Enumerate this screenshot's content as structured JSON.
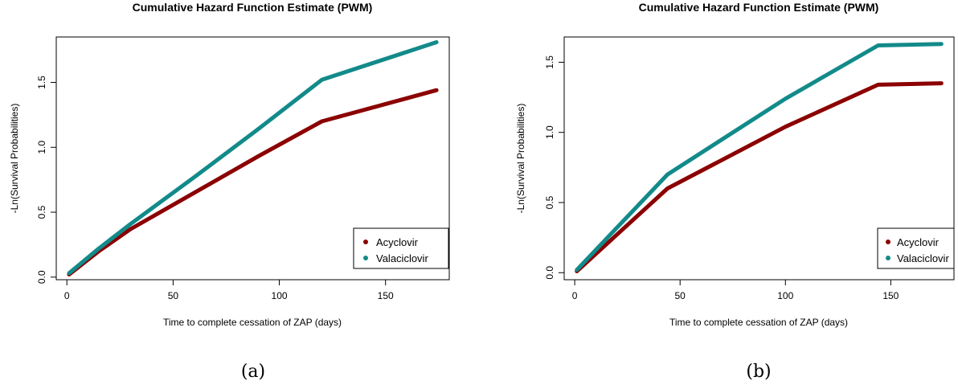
{
  "chart_data": [
    {
      "type": "line",
      "title": "Cumulative Hazard Function Estimate (PWM)",
      "xlabel": "Time to complete cessation of ZAP (days)",
      "ylabel": "-Ln(Survival Probabilities)",
      "caption": "(a)",
      "xlim": [
        -5,
        180
      ],
      "ylim": [
        -0.02,
        1.85
      ],
      "xticks": [
        0,
        50,
        100,
        150
      ],
      "yticks": [
        0.0,
        0.5,
        1.0,
        1.5
      ],
      "xtick_labels": [
        "0",
        "50",
        "100",
        "150"
      ],
      "ytick_labels": [
        "0.0",
        "0.5",
        "1.0",
        "1.5"
      ],
      "grid": false,
      "legend": "bottom-right",
      "series": [
        {
          "name": "Acyclovir",
          "color": "#8B0000",
          "x": [
            1,
            15,
            30,
            60,
            90,
            120,
            174
          ],
          "y": [
            0.02,
            0.2,
            0.37,
            0.65,
            0.93,
            1.2,
            1.44
          ]
        },
        {
          "name": "Valaciclovir",
          "color": "#138A8A",
          "x": [
            1,
            15,
            30,
            60,
            90,
            120,
            174
          ],
          "y": [
            0.03,
            0.22,
            0.41,
            0.77,
            1.14,
            1.52,
            1.81
          ]
        }
      ]
    },
    {
      "type": "line",
      "title": "Cumulative Hazard Function Estimate (PWM)",
      "xlabel": "Time to complete cessation of ZAP (days)",
      "ylabel": "-Ln(Survival Probabilities)",
      "caption": "(b)",
      "xlim": [
        -5,
        180
      ],
      "ylim": [
        -0.05,
        1.68
      ],
      "xticks": [
        0,
        50,
        100,
        150
      ],
      "yticks": [
        0.0,
        0.5,
        1.0,
        1.5
      ],
      "xtick_labels": [
        "0",
        "50",
        "100",
        "150"
      ],
      "ytick_labels": [
        "0.0",
        "0.5",
        "1.0",
        "1.5"
      ],
      "grid": false,
      "legend": "bottom-right",
      "series": [
        {
          "name": "Acyclovir",
          "color": "#8B0000",
          "x": [
            1,
            44,
            100,
            144,
            174
          ],
          "y": [
            0.01,
            0.6,
            1.04,
            1.34,
            1.35
          ]
        },
        {
          "name": "Valaciclovir",
          "color": "#138A8A",
          "x": [
            1,
            44,
            100,
            144,
            174
          ],
          "y": [
            0.02,
            0.7,
            1.24,
            1.62,
            1.63
          ]
        }
      ]
    }
  ]
}
